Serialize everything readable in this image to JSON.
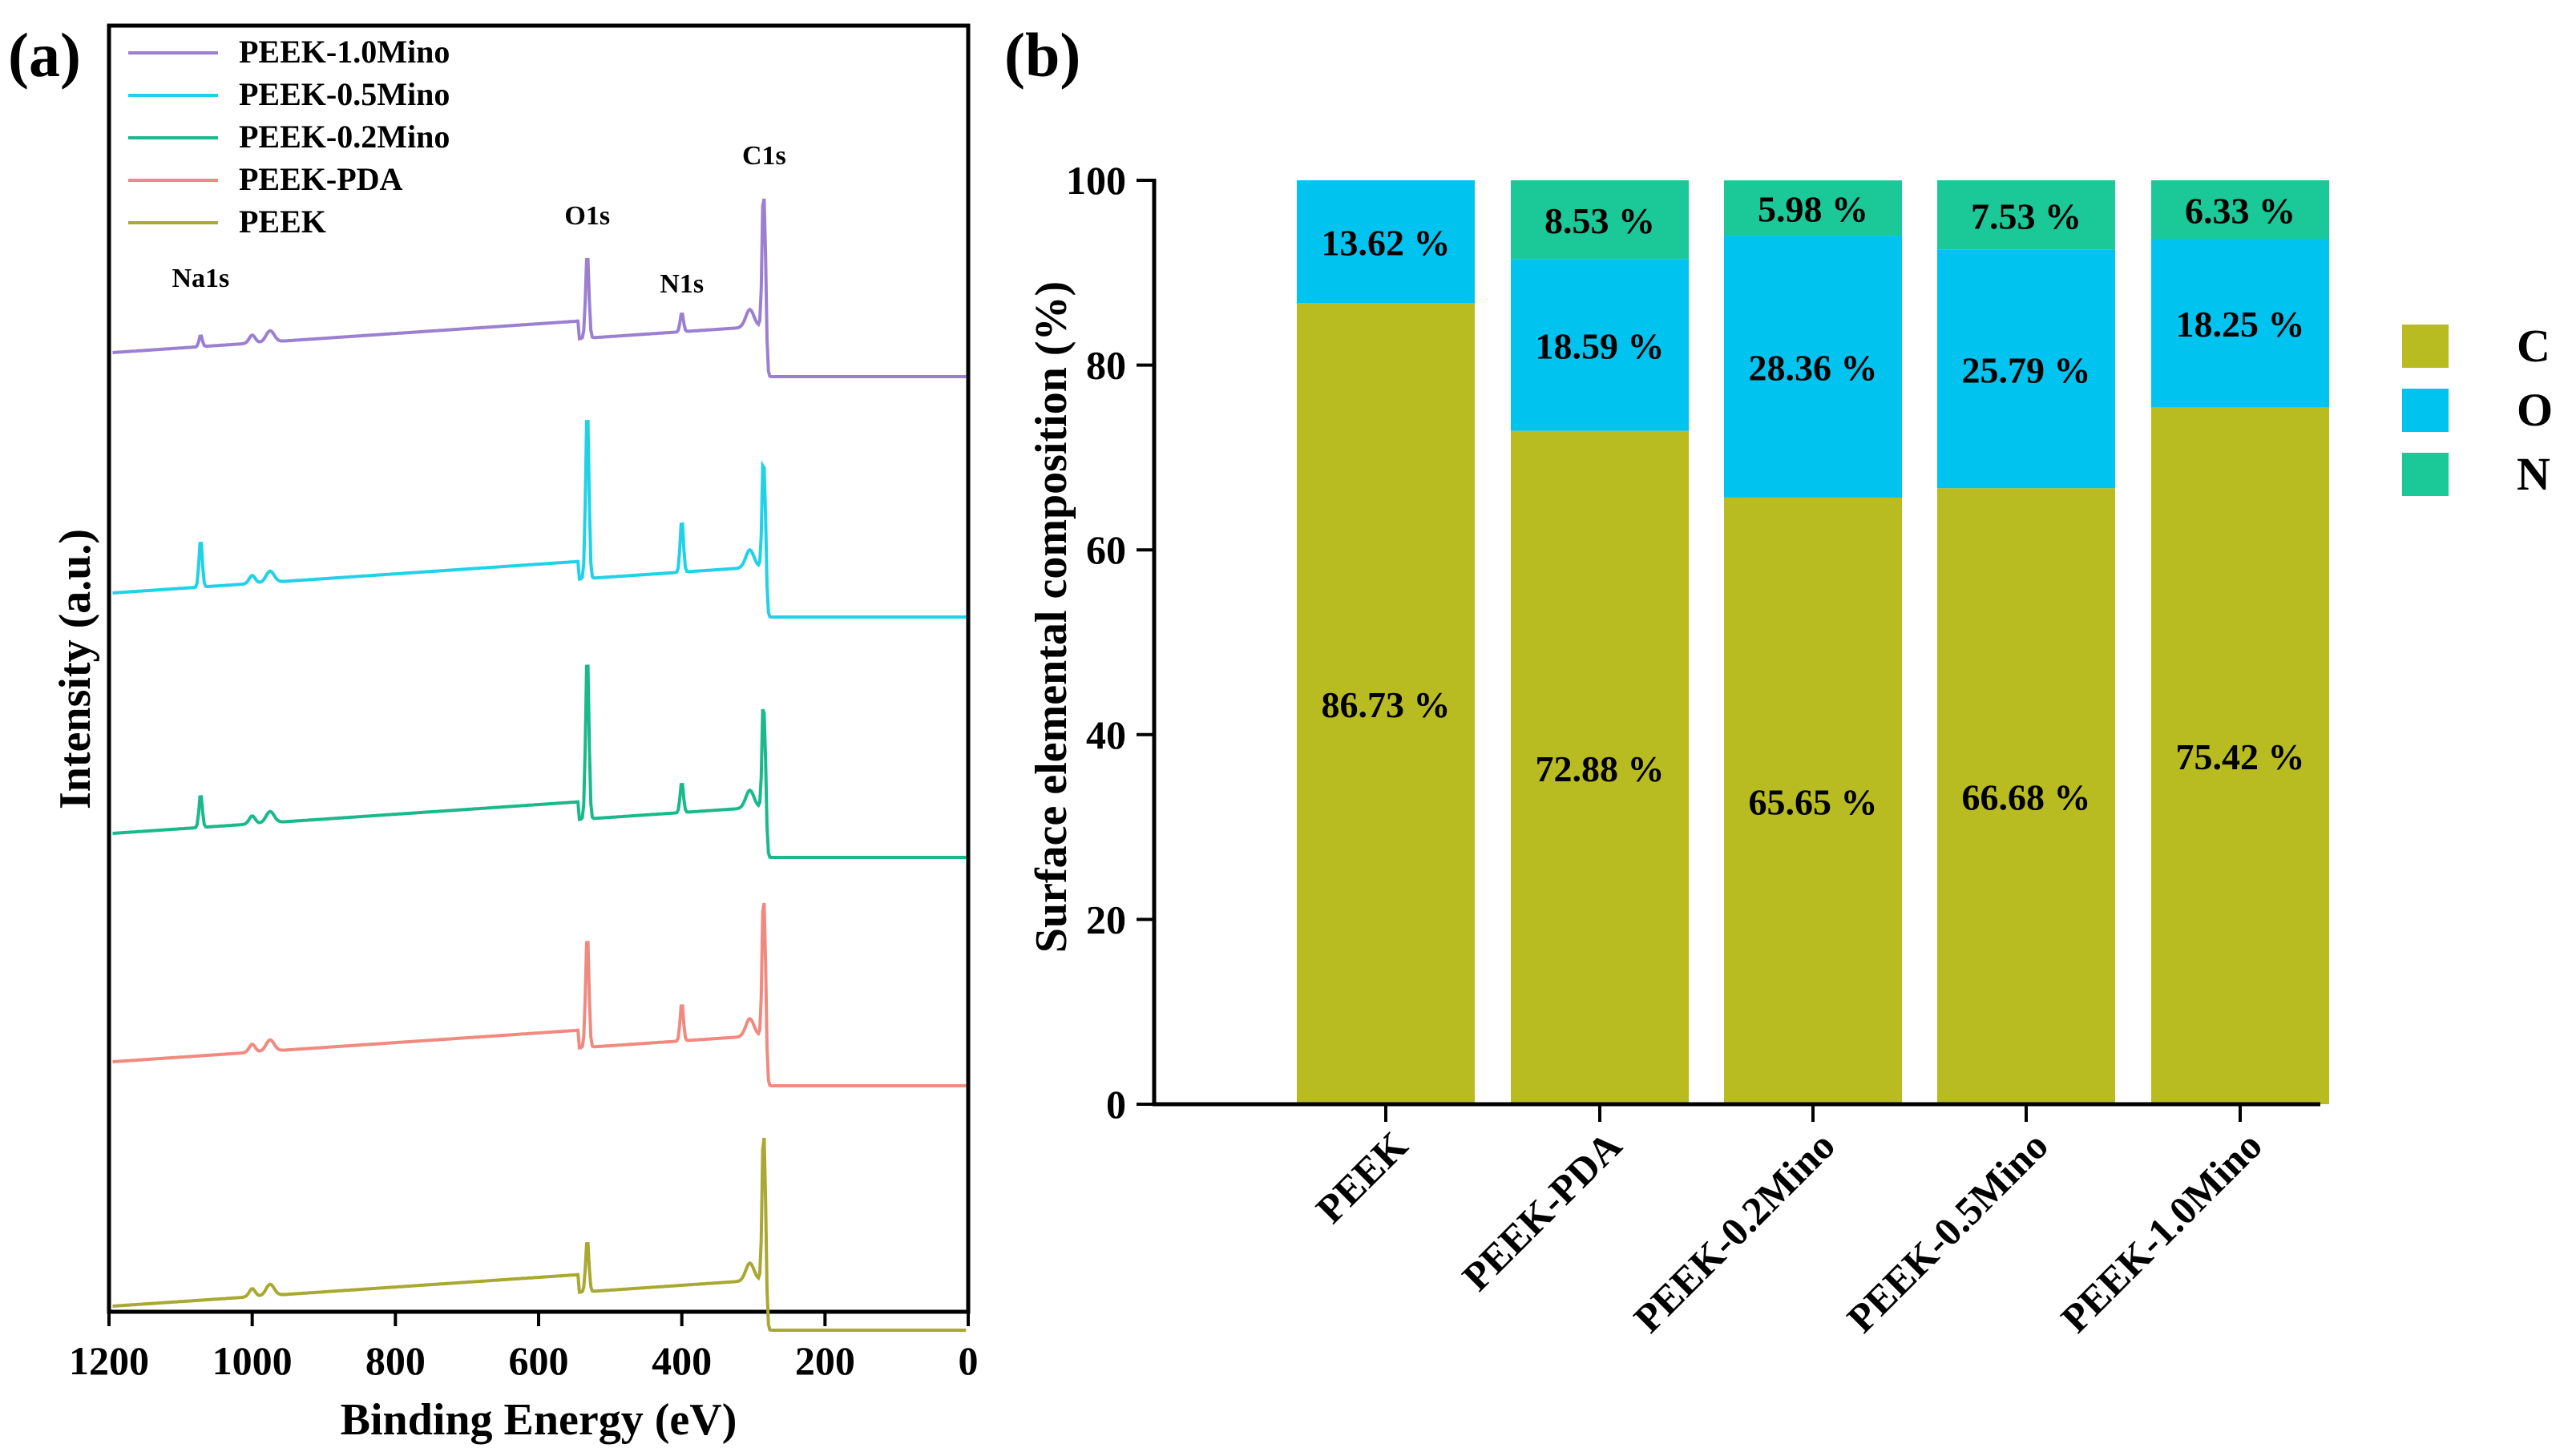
{
  "chart_data": [
    {
      "panel_label": "(a)",
      "type": "line",
      "title": "",
      "xlabel": "Binding Energy (eV)",
      "ylabel": "Intensity (a.u.)",
      "xlim": [
        1200,
        0
      ],
      "x_ticks": [
        "1200",
        "1000",
        "800",
        "600",
        "400",
        "200",
        "0"
      ],
      "legend_position": "top-left",
      "series": [
        {
          "name": "PEEK-1.0Mino",
          "color": "#9b7fd1",
          "peaks": {
            "Na1s": 0.12,
            "O1s": 0.9,
            "N1s": 0.2,
            "C1s": 1.85
          }
        },
        {
          "name": "PEEK-0.5Mino",
          "color": "#1fd2e8",
          "peaks": {
            "Na1s": 0.5,
            "O1s": 1.8,
            "N1s": 0.55,
            "C1s": 1.55
          }
        },
        {
          "name": "PEEK-0.2Mino",
          "color": "#19b98b",
          "peaks": {
            "Na1s": 0.35,
            "O1s": 1.75,
            "N1s": 0.32,
            "C1s": 1.5
          }
        },
        {
          "name": "PEEK-PDA",
          "color": "#f08a7e",
          "peaks": {
            "Na1s": 0.0,
            "O1s": 1.2,
            "N1s": 0.4,
            "C1s": 1.9
          }
        },
        {
          "name": "PEEK",
          "color": "#a8a832",
          "peaks": {
            "Na1s": 0.0,
            "O1s": 0.55,
            "N1s": 0.0,
            "C1s": 2.0
          }
        }
      ],
      "peak_labels": [
        {
          "text": "Na1s",
          "x": 1072
        },
        {
          "text": "O1s",
          "x": 532
        },
        {
          "text": "N1s",
          "x": 400
        },
        {
          "text": "C1s",
          "x": 285
        }
      ]
    },
    {
      "panel_label": "(b)",
      "type": "bar",
      "stacked": true,
      "title": "",
      "xlabel": "",
      "ylabel": "Surface elemental composition (%)",
      "ylim": [
        0,
        100
      ],
      "y_ticks": [
        0,
        20,
        40,
        60,
        80,
        100
      ],
      "categories": [
        "PEEK",
        "PEEK-PDA",
        "PEEK-0.2Mino",
        "PEEK-0.5Mino",
        "PEEK-1.0Mino"
      ],
      "series": [
        {
          "name": "C",
          "color": "#b9bc21",
          "values": [
            86.73,
            72.88,
            65.65,
            66.68,
            75.42
          ],
          "labels": [
            "86.73 %",
            "72.88 %",
            "65.65 %",
            "66.68 %",
            "75.42 %"
          ]
        },
        {
          "name": "O",
          "color": "#00c4ef",
          "values": [
            13.62,
            18.59,
            28.36,
            25.79,
            18.25
          ],
          "labels": [
            "13.62 %",
            "18.59 %",
            "28.36 %",
            "25.79 %",
            "18.25 %"
          ]
        },
        {
          "name": "N",
          "color": "#1bc898",
          "values": [
            0,
            8.53,
            5.98,
            7.53,
            6.33
          ],
          "labels": [
            "",
            "8.53 %",
            "5.98 %",
            "7.53 %",
            "6.33 %"
          ]
        }
      ],
      "legend_position": "right"
    }
  ]
}
